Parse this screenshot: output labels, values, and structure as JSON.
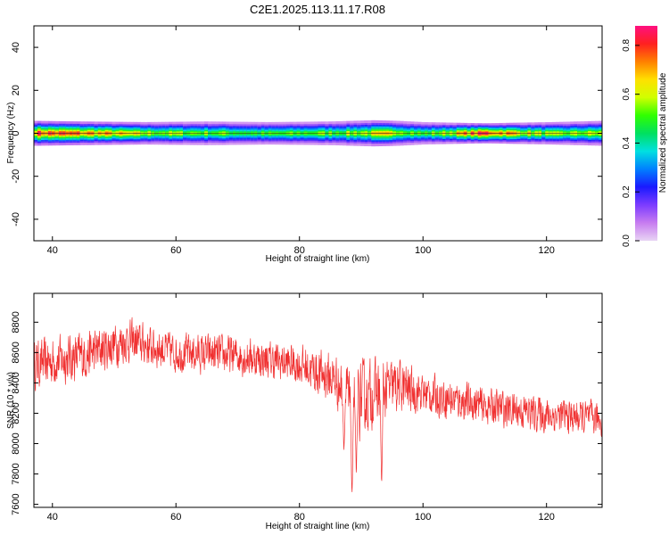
{
  "figure": {
    "title": "C2E1.2025.113.11.17.R08"
  },
  "chart_data": [
    {
      "type": "heatmap",
      "xlabel": "Height of straight line (km)",
      "ylabel": "Frequency (Hz)",
      "xlim": [
        37,
        129
      ],
      "ylim": [
        -50,
        50
      ],
      "xticks": [
        40,
        60,
        80,
        100,
        120
      ],
      "yticks": [
        -40,
        -20,
        0,
        20,
        40
      ],
      "colorbar": {
        "label": "Normalized spectral amplitude",
        "range": [
          0.0,
          0.88
        ],
        "ticks": [
          0.0,
          0.2,
          0.4,
          0.6,
          0.8
        ],
        "colormap": [
          "#e8d4f4",
          "#c77cf0",
          "#7c3cff",
          "#1a1aff",
          "#0080ff",
          "#00e0e0",
          "#00e060",
          "#30ff00",
          "#d0ff00",
          "#ffe000",
          "#ff8000",
          "#ff2020",
          "#ff1080"
        ]
      },
      "band": {
        "center_hz": 0,
        "profile": [
          {
            "x": 37,
            "half_width_hz": 4.0,
            "core": 0.82
          },
          {
            "x": 45,
            "half_width_hz": 3.8,
            "core": 0.75
          },
          {
            "x": 55,
            "half_width_hz": 3.6,
            "core": 0.6
          },
          {
            "x": 65,
            "half_width_hz": 3.8,
            "core": 0.55
          },
          {
            "x": 75,
            "half_width_hz": 3.6,
            "core": 0.5
          },
          {
            "x": 85,
            "half_width_hz": 3.8,
            "core": 0.55
          },
          {
            "x": 92,
            "half_width_hz": 4.2,
            "core": 0.62
          },
          {
            "x": 96,
            "half_width_hz": 4.0,
            "core": 0.65
          },
          {
            "x": 100,
            "half_width_hz": 3.6,
            "core": 0.5
          },
          {
            "x": 105,
            "half_width_hz": 3.4,
            "core": 0.65
          },
          {
            "x": 110,
            "half_width_hz": 3.2,
            "core": 0.85
          },
          {
            "x": 115,
            "half_width_hz": 3.4,
            "core": 0.7
          },
          {
            "x": 121,
            "half_width_hz": 3.6,
            "core": 0.55
          },
          {
            "x": 129,
            "half_width_hz": 4.0,
            "core": 0.6
          }
        ]
      },
      "grid": false
    },
    {
      "type": "line",
      "xlabel": "Height of straight line (km)",
      "ylabel": "SNR (10 * v/v)",
      "xlim": [
        37,
        129
      ],
      "ylim": [
        7580,
        8990
      ],
      "xticks": [
        40,
        60,
        80,
        100,
        120
      ],
      "yticks": [
        7600,
        7800,
        8000,
        8200,
        8400,
        8600,
        8800
      ],
      "grid": false,
      "series": [
        {
          "color": "#f03030",
          "trend": [
            {
              "x": 37,
              "y": 8520,
              "spread": 200
            },
            {
              "x": 45,
              "y": 8580,
              "spread": 200
            },
            {
              "x": 52,
              "y": 8680,
              "spread": 180
            },
            {
              "x": 60,
              "y": 8600,
              "spread": 160
            },
            {
              "x": 70,
              "y": 8580,
              "spread": 160
            },
            {
              "x": 80,
              "y": 8520,
              "spread": 160
            },
            {
              "x": 86,
              "y": 8420,
              "spread": 220
            },
            {
              "x": 88,
              "y": 8250,
              "spread": 330
            },
            {
              "x": 92,
              "y": 8330,
              "spread": 280
            },
            {
              "x": 96,
              "y": 8380,
              "spread": 220
            },
            {
              "x": 100,
              "y": 8330,
              "spread": 170
            },
            {
              "x": 110,
              "y": 8250,
              "spread": 150
            },
            {
              "x": 120,
              "y": 8190,
              "spread": 150
            },
            {
              "x": 129,
              "y": 8160,
              "spread": 140
            }
          ],
          "dips": [
            {
              "x": 88.5,
              "y": 7600
            },
            {
              "x": 89.2,
              "y": 7800
            },
            {
              "x": 93.3,
              "y": 7680
            },
            {
              "x": 87.2,
              "y": 7950
            }
          ]
        }
      ]
    }
  ]
}
